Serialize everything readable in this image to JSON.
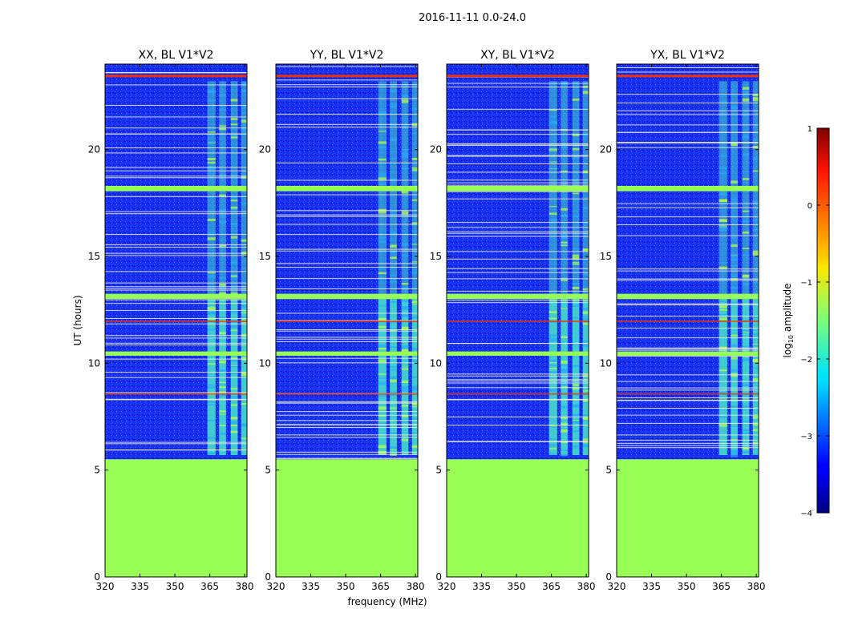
{
  "figure": {
    "suptitle": "2016-11-11 0.0-24.0",
    "xlabel": "frequency (MHz)",
    "ylabel": "UT (hours)",
    "colorbar_label_prefix": "log",
    "colorbar_label_sub": "10",
    "colorbar_label_suffix": " amplitude"
  },
  "colors": {
    "nodata": "#99ff55",
    "background_noise": "#1a33ee",
    "flag_line": "#f0f0d0",
    "strong_line": "#ee3300",
    "rfi_band": "#44ddcc"
  },
  "chart_data": {
    "type": "heatmap",
    "panels": [
      {
        "title": "XX, BL V1*V2",
        "pol": "XX"
      },
      {
        "title": "YY, BL V1*V2",
        "pol": "YY"
      },
      {
        "title": "XY, BL V1*V2",
        "pol": "XY"
      },
      {
        "title": "YX, BL V1*V2",
        "pol": "YX"
      }
    ],
    "x": {
      "label": "frequency (MHz)",
      "lim": [
        320,
        381
      ],
      "ticks": [
        320,
        335,
        350,
        365,
        380
      ]
    },
    "y": {
      "label": "UT (hours)",
      "lim": [
        0,
        24
      ],
      "ticks": [
        0,
        5,
        10,
        15,
        20
      ]
    },
    "no_data_hours": [
      0,
      5.5
    ],
    "no_data_value": -1.2,
    "background_value": -3.2,
    "flagged_time_bands_hours": [
      [
        13.0,
        13.25
      ],
      [
        18.05,
        18.3
      ],
      [
        10.35,
        10.55
      ]
    ],
    "strong_line_hours": [
      23.5,
      8.6,
      12.0
    ],
    "rfi_channel_bands_mhz": [
      [
        364,
        367.5
      ],
      [
        369,
        372
      ],
      [
        374,
        377
      ],
      [
        378.5,
        381
      ]
    ],
    "rfi_active_hours": [
      [
        5.7,
        13.0
      ],
      [
        13.0,
        23.2
      ]
    ],
    "colorbar": {
      "vmin": -4,
      "vmax": 1,
      "ticks": [
        {
          "v": 1,
          "label": "1"
        },
        {
          "v": 0,
          "label": "0"
        },
        {
          "v": -1,
          "label": "−1"
        },
        {
          "v": -2,
          "label": "−2"
        },
        {
          "v": -3,
          "label": "−3"
        },
        {
          "v": -4,
          "label": "−4"
        }
      ]
    }
  }
}
